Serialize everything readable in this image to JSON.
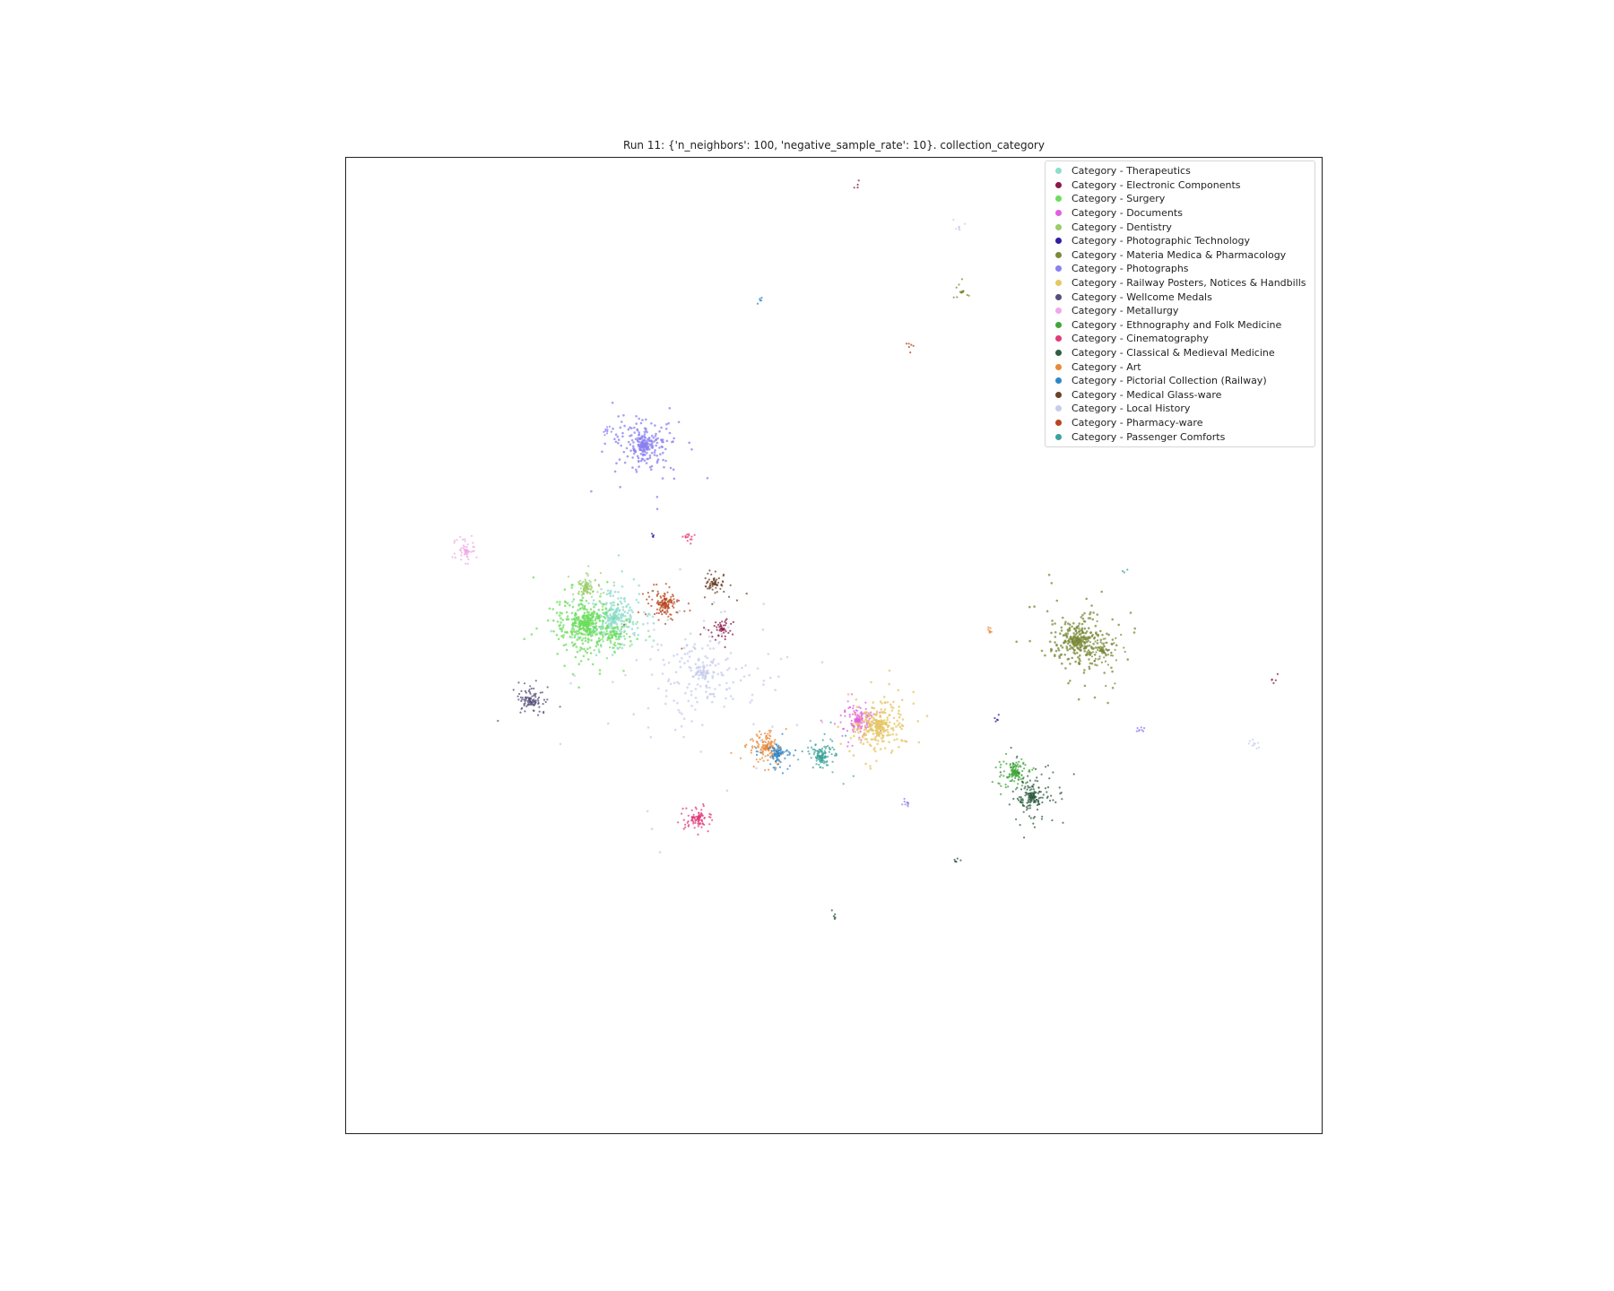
{
  "chart_data": {
    "type": "scatter",
    "title": "Run 11: {'n_neighbors': 100, 'negative_sample_rate': 10}. collection_category",
    "xlabel": "",
    "ylabel": "",
    "ticks_visible": false,
    "grid": false,
    "legend_position": "top-right",
    "xlim": [
      0,
      100
    ],
    "ylim": [
      0,
      100
    ],
    "series": [
      {
        "name": "Category - Therapeutics",
        "color": "#8fdccc",
        "clusters": [
          {
            "x": 27.5,
            "y": 52.9,
            "spread": 1.8,
            "n": 260
          }
        ]
      },
      {
        "name": "Category - Electronic Components",
        "color": "#8b1a4a",
        "clusters": [
          {
            "x": 38.5,
            "y": 51.7,
            "spread": 0.6,
            "n": 50
          },
          {
            "x": 52.3,
            "y": 97.2,
            "spread": 0.2,
            "n": 4
          },
          {
            "x": 95.2,
            "y": 46.4,
            "spread": 0.3,
            "n": 5
          }
        ]
      },
      {
        "name": "Category - Surgery",
        "color": "#6ddd5e",
        "clusters": [
          {
            "x": 24.5,
            "y": 52.2,
            "spread": 2.0,
            "n": 420
          },
          {
            "x": 27.6,
            "y": 51.0,
            "spread": 1.2,
            "n": 70
          }
        ]
      },
      {
        "name": "Category - Documents",
        "color": "#e25fe0",
        "clusters": [
          {
            "x": 52.5,
            "y": 42.3,
            "spread": 1.0,
            "n": 160
          }
        ]
      },
      {
        "name": "Category - Dentistry",
        "color": "#9ccc6a",
        "clusters": [
          {
            "x": 24.6,
            "y": 56.0,
            "spread": 0.7,
            "n": 90
          }
        ]
      },
      {
        "name": "Category - Photographic Technology",
        "color": "#2e1fa0",
        "clusters": [
          {
            "x": 31.5,
            "y": 61.3,
            "spread": 0.2,
            "n": 4
          },
          {
            "x": 66.7,
            "y": 42.4,
            "spread": 0.3,
            "n": 5
          }
        ]
      },
      {
        "name": "Category - Materia Medica & Pharmacology",
        "color": "#7a8a3a",
        "clusters": [
          {
            "x": 75.0,
            "y": 50.5,
            "spread": 1.8,
            "n": 320
          },
          {
            "x": 77.4,
            "y": 49.5,
            "spread": 1.1,
            "n": 90
          },
          {
            "x": 63.1,
            "y": 86.2,
            "spread": 0.5,
            "n": 18
          }
        ]
      },
      {
        "name": "Category - Photographs",
        "color": "#8a80ef",
        "clusters": [
          {
            "x": 30.6,
            "y": 70.5,
            "spread": 1.6,
            "n": 260
          },
          {
            "x": 26.7,
            "y": 72.0,
            "spread": 0.4,
            "n": 10
          },
          {
            "x": 57.5,
            "y": 33.9,
            "spread": 0.4,
            "n": 10
          },
          {
            "x": 81.5,
            "y": 41.3,
            "spread": 0.3,
            "n": 8
          }
        ]
      },
      {
        "name": "Category - Railway Posters, Notices & Handbills",
        "color": "#e6c765",
        "clusters": [
          {
            "x": 54.6,
            "y": 41.8,
            "spread": 1.7,
            "n": 300
          }
        ]
      },
      {
        "name": "Category - Wellcome Medals",
        "color": "#55507a",
        "clusters": [
          {
            "x": 18.9,
            "y": 44.2,
            "spread": 0.8,
            "n": 110
          }
        ]
      },
      {
        "name": "Category - Metallurgy",
        "color": "#f0a8e8",
        "clusters": [
          {
            "x": 12.3,
            "y": 59.7,
            "spread": 0.8,
            "n": 60
          }
        ]
      },
      {
        "name": "Category - Ethnography and Folk Medicine",
        "color": "#3fa63a",
        "clusters": [
          {
            "x": 68.5,
            "y": 37.0,
            "spread": 0.8,
            "n": 130
          }
        ]
      },
      {
        "name": "Category - Cinematography",
        "color": "#e23a7a",
        "clusters": [
          {
            "x": 36.1,
            "y": 32.3,
            "spread": 0.9,
            "n": 100
          },
          {
            "x": 35.0,
            "y": 61.1,
            "spread": 0.4,
            "n": 14
          }
        ]
      },
      {
        "name": "Category - Classical & Medieval Medicine",
        "color": "#2f5f42",
        "clusters": [
          {
            "x": 70.4,
            "y": 34.4,
            "spread": 1.3,
            "n": 190
          },
          {
            "x": 62.5,
            "y": 27.9,
            "spread": 0.3,
            "n": 6
          },
          {
            "x": 50.1,
            "y": 22.1,
            "spread": 0.3,
            "n": 6
          }
        ]
      },
      {
        "name": "Category - Art",
        "color": "#e8893a",
        "clusters": [
          {
            "x": 43.1,
            "y": 39.5,
            "spread": 1.0,
            "n": 150
          },
          {
            "x": 66.0,
            "y": 51.6,
            "spread": 0.4,
            "n": 8
          }
        ]
      },
      {
        "name": "Category - Pictorial Collection (Railway)",
        "color": "#2e86c8",
        "clusters": [
          {
            "x": 44.3,
            "y": 38.9,
            "spread": 0.8,
            "n": 90
          },
          {
            "x": 42.5,
            "y": 85.4,
            "spread": 0.3,
            "n": 5
          }
        ]
      },
      {
        "name": "Category - Medical Glass-ware",
        "color": "#6b4228",
        "clusters": [
          {
            "x": 37.8,
            "y": 56.4,
            "spread": 0.7,
            "n": 70
          }
        ]
      },
      {
        "name": "Category - Local History",
        "color": "#c8ccec",
        "clusters": [
          {
            "x": 36.4,
            "y": 47.2,
            "spread": 3.6,
            "n": 240
          },
          {
            "x": 62.8,
            "y": 92.8,
            "spread": 0.4,
            "n": 8
          },
          {
            "x": 93.0,
            "y": 39.8,
            "spread": 0.4,
            "n": 10
          }
        ]
      },
      {
        "name": "Category - Pharmacy-ware",
        "color": "#b8451d",
        "clusters": [
          {
            "x": 32.6,
            "y": 54.3,
            "spread": 1.0,
            "n": 140
          },
          {
            "x": 58.0,
            "y": 80.8,
            "spread": 0.3,
            "n": 6
          }
        ]
      },
      {
        "name": "Category - Passenger Comforts",
        "color": "#3ca39a",
        "clusters": [
          {
            "x": 48.6,
            "y": 38.6,
            "spread": 0.9,
            "n": 130
          },
          {
            "x": 79.6,
            "y": 57.6,
            "spread": 0.2,
            "n": 3
          }
        ]
      }
    ]
  }
}
